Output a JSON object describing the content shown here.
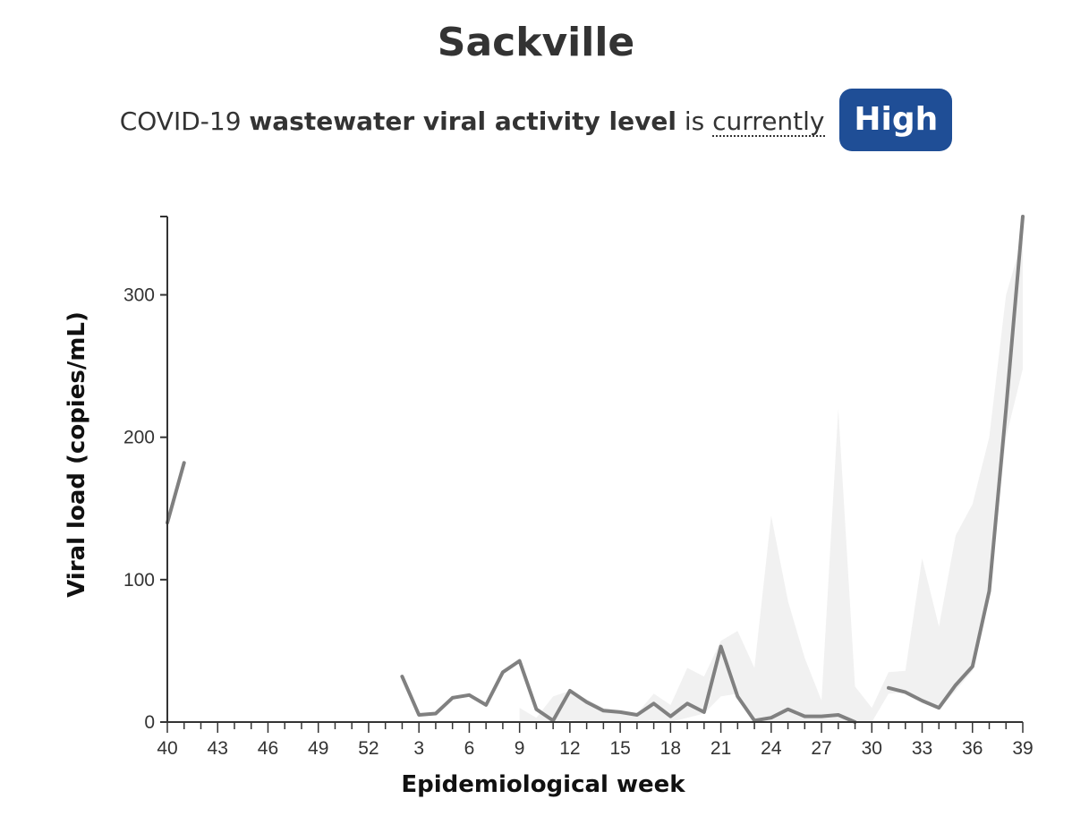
{
  "header": {
    "title": "Sackville",
    "sub_prefix": "COVID-19",
    "sub_bold": "wastewater viral activity level",
    "sub_is": "is",
    "sub_currently": "currently",
    "level": "High"
  },
  "colors": {
    "badge": "#1f4e96",
    "line": "#808080",
    "band": "#ececec"
  },
  "chart_data": {
    "type": "line",
    "title": "Sackville",
    "xlabel": "Epidemiological week",
    "ylabel": "Viral load (copies/mL)",
    "ylim": [
      0,
      355
    ],
    "y_ticks": [
      0,
      100,
      200,
      300
    ],
    "x_tick_labels": [
      "40",
      "43",
      "46",
      "49",
      "52",
      "3",
      "6",
      "9",
      "12",
      "15",
      "18",
      "21",
      "24",
      "27",
      "30",
      "33",
      "36",
      "39"
    ],
    "x_index_range": [
      0,
      51
    ],
    "series": [
      {
        "name": "Viral load",
        "segments": [
          [
            [
              0,
              140
            ],
            [
              1,
              182
            ]
          ],
          [
            [
              14,
              32
            ],
            [
              15,
              5
            ],
            [
              16,
              6
            ],
            [
              17,
              17
            ],
            [
              18,
              19
            ],
            [
              19,
              12
            ],
            [
              20,
              35
            ],
            [
              21,
              43
            ],
            [
              22,
              9
            ],
            [
              23,
              1
            ],
            [
              24,
              22
            ],
            [
              25,
              14
            ],
            [
              26,
              8
            ],
            [
              27,
              7
            ],
            [
              28,
              5
            ],
            [
              29,
              13
            ],
            [
              30,
              4
            ],
            [
              31,
              13
            ],
            [
              32,
              7
            ],
            [
              33,
              53
            ],
            [
              34,
              18
            ],
            [
              35,
              1
            ],
            [
              36,
              3
            ],
            [
              37,
              9
            ],
            [
              38,
              4
            ],
            [
              39,
              4
            ],
            [
              40,
              5
            ],
            [
              41,
              0
            ]
          ],
          [
            [
              43,
              24
            ],
            [
              44,
              21
            ],
            [
              45,
              15
            ],
            [
              46,
              10
            ],
            [
              47,
              26
            ],
            [
              48,
              39
            ],
            [
              49,
              92
            ],
            [
              50,
              220
            ],
            [
              51,
              355
            ]
          ]
        ]
      }
    ],
    "band": {
      "name": "Range",
      "segments": [
        [
          [
            21,
            10
          ],
          [
            22,
            3
          ],
          [
            23,
            18
          ],
          [
            24,
            22
          ],
          [
            25,
            16
          ],
          [
            26,
            10
          ],
          [
            27,
            8
          ],
          [
            28,
            6
          ],
          [
            29,
            20
          ],
          [
            30,
            12
          ],
          [
            31,
            38
          ],
          [
            32,
            32
          ],
          [
            33,
            57
          ],
          [
            34,
            64
          ],
          [
            35,
            38
          ],
          [
            36,
            145
          ],
          [
            37,
            85
          ],
          [
            38,
            45
          ],
          [
            39,
            15
          ],
          [
            40,
            220
          ],
          [
            41,
            25
          ],
          [
            42,
            10
          ],
          [
            43,
            35
          ],
          [
            44,
            36
          ],
          [
            45,
            115
          ],
          [
            46,
            67
          ],
          [
            47,
            131
          ],
          [
            48,
            153
          ],
          [
            49,
            200
          ],
          [
            50,
            300
          ],
          [
            51,
            340
          ]
        ],
        [
          [
            21,
            0
          ],
          [
            22,
            0
          ],
          [
            23,
            0
          ],
          [
            24,
            1
          ],
          [
            25,
            0
          ],
          [
            26,
            0
          ],
          [
            27,
            0
          ],
          [
            28,
            0
          ],
          [
            29,
            1
          ],
          [
            30,
            0
          ],
          [
            31,
            3
          ],
          [
            32,
            6
          ],
          [
            33,
            18
          ],
          [
            34,
            20
          ],
          [
            35,
            0
          ],
          [
            36,
            0
          ],
          [
            37,
            0
          ],
          [
            38,
            0
          ],
          [
            39,
            0
          ],
          [
            40,
            0
          ],
          [
            41,
            0
          ],
          [
            42,
            0
          ],
          [
            43,
            20
          ],
          [
            44,
            21
          ],
          [
            45,
            14
          ],
          [
            46,
            9
          ],
          [
            47,
            22
          ],
          [
            48,
            36
          ],
          [
            49,
            88
          ],
          [
            50,
            200
          ],
          [
            51,
            248
          ]
        ]
      ]
    }
  }
}
